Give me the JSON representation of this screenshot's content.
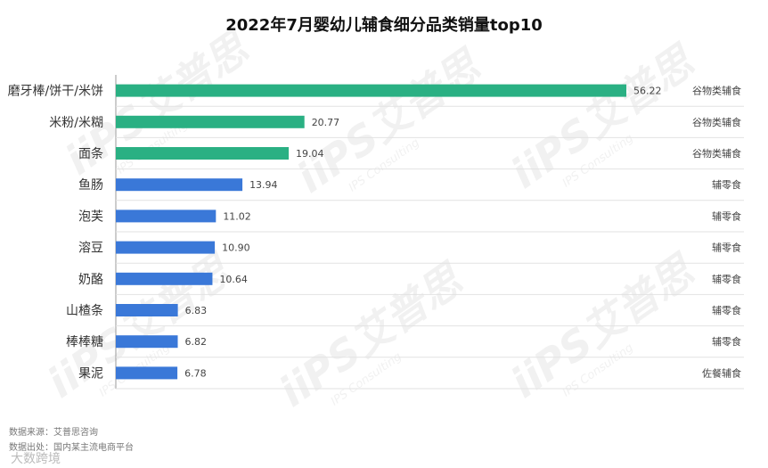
{
  "title": "2022年7月婴幼儿辅食细分品类销量top10",
  "source": {
    "line1": "数据来源：艾普思咨询",
    "line2": "数据出处：国内某主流电商平台"
  },
  "footer": "大数跨境",
  "watermark": {
    "brand": "iiPS艾普思",
    "sub": "IPS Consulting"
  },
  "colors": {
    "cereal": "#2ab083",
    "snack": "#3a78d8",
    "meal": "#3a78d8"
  },
  "chart_data": {
    "type": "bar",
    "orientation": "horizontal",
    "title": "2022年7月婴幼儿辅食细分品类销量top10",
    "categories": [
      "磨牙棒/饼干/米饼",
      "米粉/米糊",
      "面条",
      "鱼肠",
      "泡芙",
      "溶豆",
      "奶酪",
      "山楂条",
      "棒棒糖",
      "果泥"
    ],
    "values": [
      56.22,
      20.77,
      19.04,
      13.94,
      11.02,
      10.9,
      10.64,
      6.83,
      6.82,
      6.78
    ],
    "value_labels": [
      "56.22",
      "20.77",
      "19.04",
      "13.94",
      "11.02",
      "10.90",
      "10.64",
      "6.83",
      "6.82",
      "6.78"
    ],
    "groups": [
      "谷物类辅食",
      "谷物类辅食",
      "谷物类辅食",
      "辅零食",
      "辅零食",
      "辅零食",
      "辅零食",
      "辅零食",
      "辅零食",
      "佐餐辅食"
    ],
    "xlim": [
      0,
      60
    ],
    "grid": false,
    "xlabel": "",
    "ylabel": ""
  }
}
